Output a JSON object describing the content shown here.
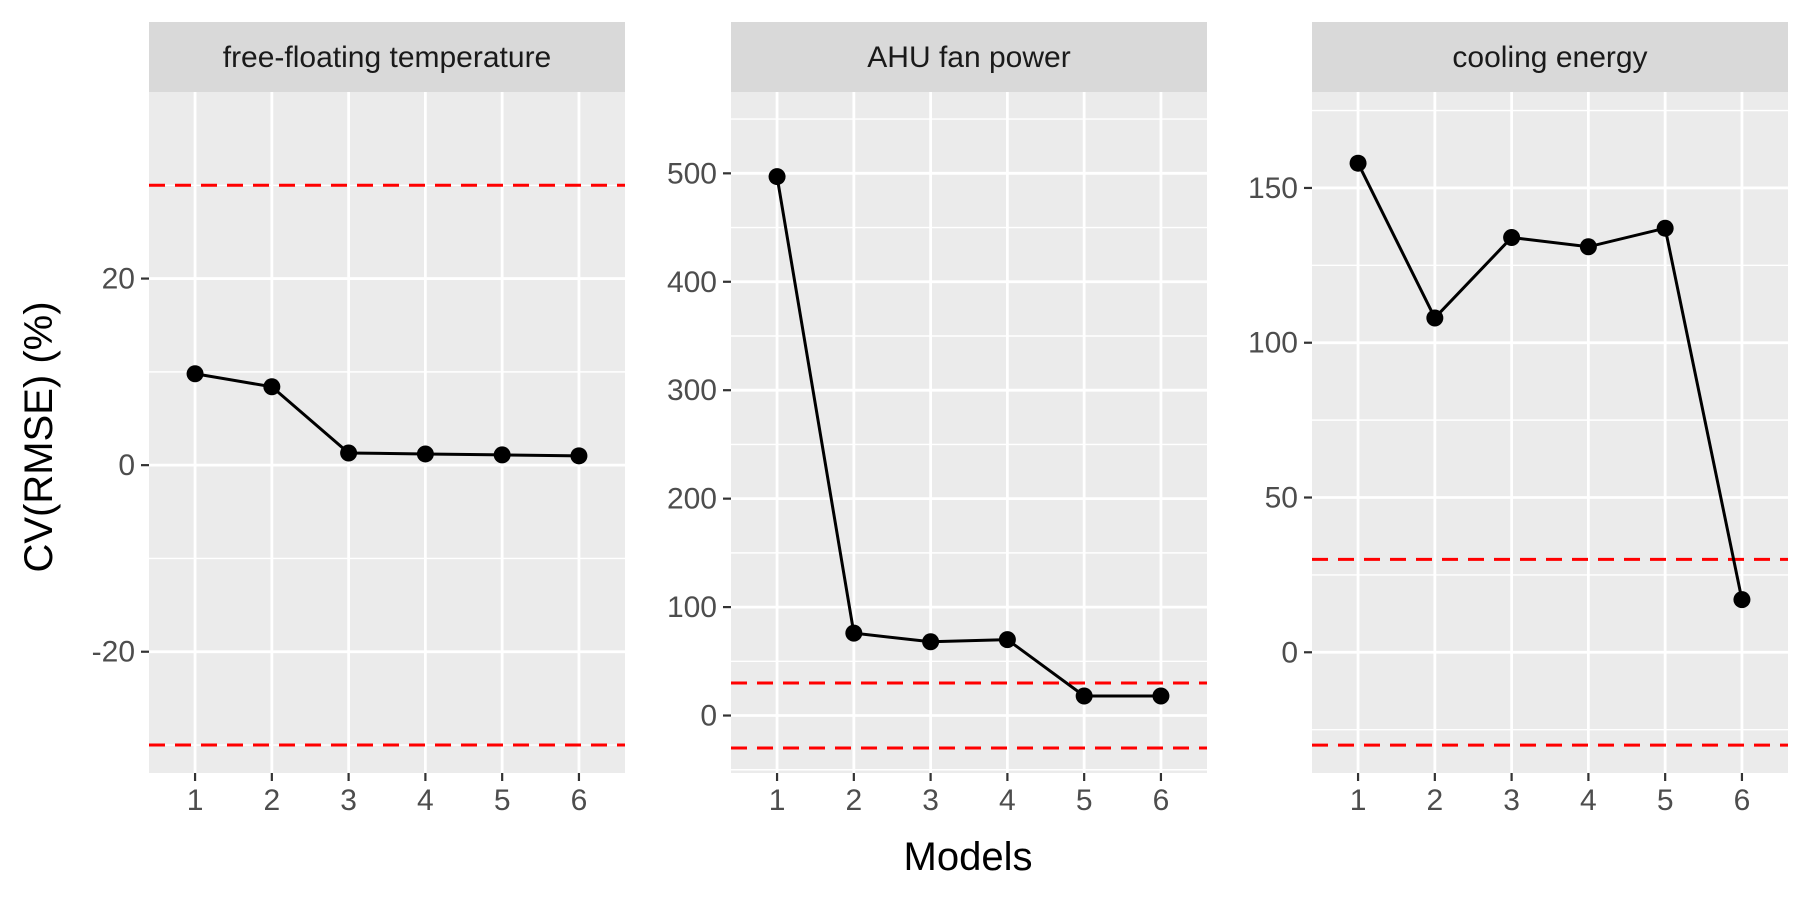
{
  "chart_data": {
    "type": "line",
    "layout": "facet",
    "xlabel": "Models",
    "ylabel": "CV(RMSE) (%)",
    "x": [
      1,
      2,
      3,
      4,
      5,
      6
    ],
    "xlim": [
      0.4,
      6.6
    ],
    "panels": [
      {
        "title": "free-floating temperature",
        "ylim": [
          -33,
          40
        ],
        "yticks": [
          -20,
          0,
          20
        ],
        "values": [
          9.8,
          8.4,
          1.3,
          1.2,
          1.1,
          1.0
        ],
        "thresholds": [
          30,
          -30
        ]
      },
      {
        "title": "AHU fan power",
        "ylim": [
          -53,
          575
        ],
        "yticks": [
          0,
          100,
          200,
          300,
          400,
          500
        ],
        "values": [
          497,
          76,
          68,
          70,
          18,
          18
        ],
        "thresholds": [
          30,
          -30
        ]
      },
      {
        "title": "cooling energy",
        "ylim": [
          -39,
          181
        ],
        "yticks": [
          0,
          50,
          100,
          150
        ],
        "values": [
          158,
          108,
          134,
          131,
          137,
          17
        ],
        "thresholds": [
          30,
          -30
        ]
      }
    ],
    "colors": {
      "panel_bg": "#ebebeb",
      "strip_bg": "#d9d9d9",
      "grid": "#ffffff",
      "line": "#000000",
      "point": "#000000",
      "threshold": "#ff0000"
    },
    "grid": true,
    "legend": "none"
  }
}
